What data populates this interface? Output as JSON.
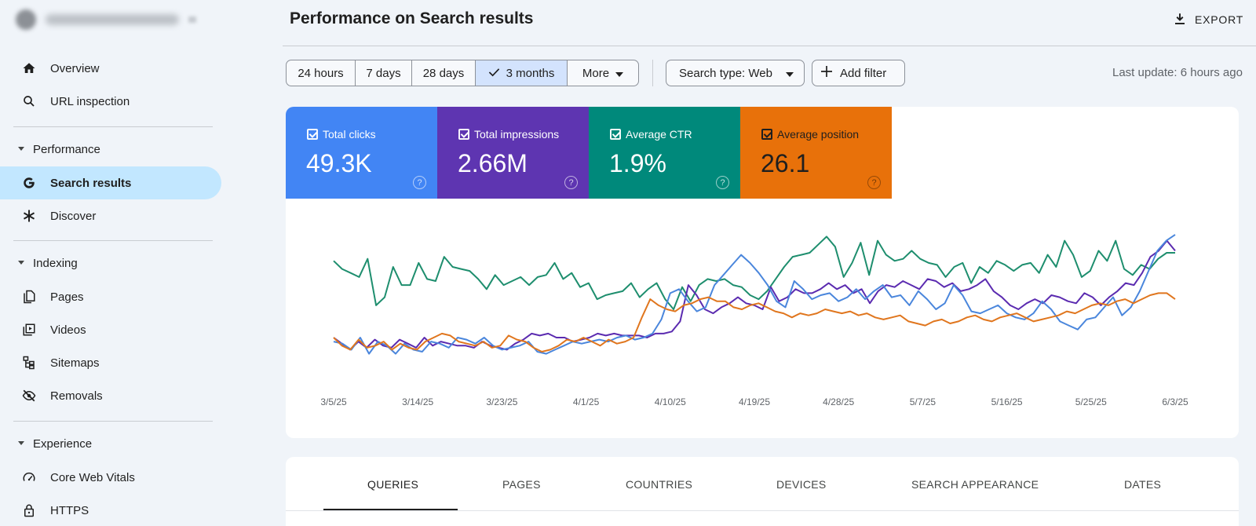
{
  "sidebar": {
    "property_name": "",
    "items": [
      {
        "id": "overview",
        "label": "Overview",
        "icon": "home-icon"
      },
      {
        "id": "url-inspection",
        "label": "URL inspection",
        "icon": "search-icon"
      }
    ],
    "sections": [
      {
        "title": "Performance",
        "items": [
          {
            "id": "search-results",
            "label": "Search results",
            "icon": "google-g-icon",
            "active": true
          },
          {
            "id": "discover",
            "label": "Discover",
            "icon": "asterisk-icon"
          }
        ]
      },
      {
        "title": "Indexing",
        "items": [
          {
            "id": "pages",
            "label": "Pages",
            "icon": "pages-icon"
          },
          {
            "id": "videos",
            "label": "Videos",
            "icon": "video-icon"
          },
          {
            "id": "sitemaps",
            "label": "Sitemaps",
            "icon": "sitemap-icon"
          },
          {
            "id": "removals",
            "label": "Removals",
            "icon": "eye-off-icon"
          }
        ]
      },
      {
        "title": "Experience",
        "items": [
          {
            "id": "core-web-vitals",
            "label": "Core Web Vitals",
            "icon": "gauge-icon"
          },
          {
            "id": "https",
            "label": "HTTPS",
            "icon": "lock-icon"
          }
        ]
      }
    ]
  },
  "header": {
    "title": "Performance on Search results",
    "export_label": "EXPORT"
  },
  "filters": {
    "date_ranges": [
      "24 hours",
      "7 days",
      "28 days",
      "3 months",
      "More"
    ],
    "selected_range": "3 months",
    "search_type": "Search type: Web",
    "add_filter": "Add filter",
    "last_update": "Last update: 6 hours ago"
  },
  "metrics": [
    {
      "label": "Total clicks",
      "value": "49.3K",
      "color": "#4285f4",
      "checked": true
    },
    {
      "label": "Total impressions",
      "value": "2.66M",
      "color": "#5e35b1",
      "checked": true
    },
    {
      "label": "Average CTR",
      "value": "1.9%",
      "color": "#00897b",
      "checked": true
    },
    {
      "label": "Average position",
      "value": "26.1",
      "color": "#e8710a",
      "checked": true
    }
  ],
  "chart_data": {
    "type": "line",
    "x_ticks": [
      "3/5/25",
      "3/14/25",
      "3/23/25",
      "4/1/25",
      "4/10/25",
      "4/19/25",
      "4/28/25",
      "5/7/25",
      "5/16/25",
      "5/25/25",
      "6/3/25"
    ],
    "x_start": "3/5/25",
    "x_end": "6/3/25",
    "y_axis_visible": false,
    "grid": false,
    "series": [
      {
        "name": "Average CTR",
        "color": "#1e8e6e",
        "values": [
          52,
          48,
          46,
          44,
          53,
          30,
          34,
          49,
          40,
          40,
          51,
          43,
          42,
          54,
          49,
          48,
          47,
          43,
          38,
          45,
          40,
          42,
          44,
          40,
          44,
          45,
          51,
          43,
          46,
          39,
          41,
          33,
          35,
          36,
          37,
          41,
          34,
          38,
          41,
          33,
          28,
          39,
          32,
          40,
          43,
          42,
          43,
          40,
          39,
          35,
          33,
          37,
          43,
          49,
          54,
          55,
          56,
          60,
          64,
          59,
          44,
          51,
          61,
          45,
          62,
          55,
          52,
          53,
          57,
          53,
          51,
          50,
          44,
          49,
          51,
          41,
          49,
          46,
          52,
          50,
          47,
          50,
          51,
          46,
          55,
          49,
          62,
          55,
          44,
          47,
          57,
          52,
          62,
          48,
          45,
          50,
          48,
          53,
          56,
          56
        ]
      },
      {
        "name": "Total impressions",
        "color": "#5b2bb0",
        "values": [
          14,
          11,
          8,
          12,
          9,
          13,
          10,
          9,
          13,
          11,
          9,
          14,
          10,
          12,
          11,
          10,
          10,
          9,
          12,
          10,
          9,
          8,
          11,
          13,
          16,
          15,
          16,
          14,
          14,
          12,
          13,
          14,
          16,
          15,
          16,
          15,
          15,
          15,
          14,
          16,
          16,
          17,
          22,
          40,
          35,
          28,
          26,
          29,
          31,
          34,
          31,
          30,
          28,
          39,
          32,
          34,
          38,
          36,
          36,
          38,
          41,
          38,
          40,
          36,
          38,
          31,
          37,
          40,
          39,
          42,
          40,
          38,
          43,
          42,
          39,
          41,
          37,
          38,
          40,
          43,
          37,
          34,
          30,
          28,
          31,
          33,
          31,
          35,
          34,
          32,
          31,
          36,
          34,
          30,
          34,
          37,
          41,
          40,
          46,
          54,
          57,
          62,
          57
        ]
      },
      {
        "name": "Total clicks",
        "color": "#4a86dc",
        "values": [
          12,
          11,
          8,
          14,
          6,
          12,
          10,
          6,
          11,
          8,
          7,
          12,
          11,
          9,
          14,
          13,
          11,
          14,
          10,
          8,
          9,
          10,
          12,
          7,
          6,
          8,
          10,
          12,
          11,
          12,
          13,
          12,
          14,
          15,
          13,
          14,
          16,
          23,
          36,
          38,
          32,
          27,
          29,
          40,
          45,
          50,
          55,
          51,
          46,
          40,
          32,
          29,
          42,
          38,
          33,
          35,
          36,
          32,
          34,
          38,
          33,
          37,
          40,
          34,
          35,
          30,
          37,
          33,
          28,
          31,
          40,
          35,
          27,
          26,
          28,
          30,
          26,
          24,
          23,
          26,
          32,
          28,
          22,
          20,
          18,
          23,
          24,
          29,
          34,
          25,
          29,
          37,
          47,
          57,
          62,
          65
        ]
      },
      {
        "name": "Average position",
        "color": "#e0761e",
        "values": [
          14,
          10,
          8,
          13,
          9,
          10,
          12,
          8,
          11,
          9,
          8,
          12,
          14,
          16,
          15,
          12,
          11,
          10,
          12,
          9,
          10,
          15,
          13,
          12,
          9,
          7,
          8,
          10,
          13,
          12,
          14,
          12,
          10,
          13,
          11,
          12,
          14,
          24,
          33,
          30,
          28,
          27,
          30,
          31,
          33,
          34,
          32,
          32,
          29,
          28,
          30,
          31,
          29,
          27,
          26,
          24,
          26,
          25,
          26,
          28,
          27,
          26,
          27,
          25,
          26,
          24,
          23,
          24,
          25,
          22,
          21,
          20,
          22,
          23,
          21,
          22,
          24,
          25,
          23,
          22,
          24,
          25,
          26,
          24,
          22,
          23,
          24,
          25,
          27,
          26,
          28,
          30,
          31,
          30,
          32,
          33,
          31,
          33,
          35,
          36,
          36,
          33
        ]
      }
    ]
  },
  "tabs": [
    "QUERIES",
    "PAGES",
    "COUNTRIES",
    "DEVICES",
    "SEARCH APPEARANCE",
    "DATES"
  ],
  "active_tab": "QUERIES"
}
